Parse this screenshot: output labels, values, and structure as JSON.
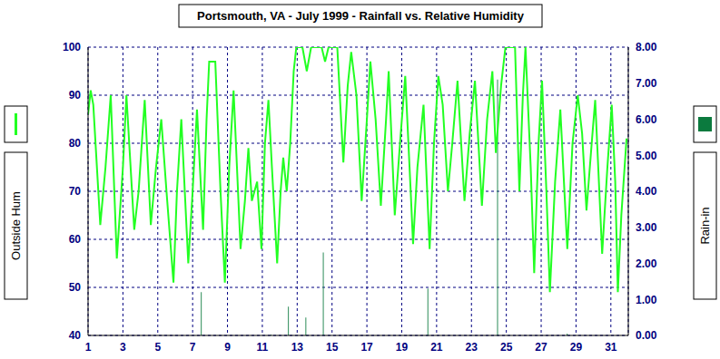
{
  "chart_data": {
    "type": "combo",
    "title": "Portsmouth, VA - July 1999 - Rainfall vs. Relative Humidity",
    "y_label": "Outside Hum",
    "y2_label": "Rain-in",
    "xlim": [
      1,
      32
    ],
    "xticks": [
      1,
      3,
      5,
      7,
      9,
      11,
      13,
      15,
      17,
      19,
      21,
      23,
      25,
      27,
      29,
      31
    ],
    "ylim": [
      40,
      100
    ],
    "yticks": [
      40,
      50,
      60,
      70,
      80,
      90,
      100
    ],
    "y2lim": [
      0,
      8
    ],
    "y2ticks": [
      {
        "value": 0,
        "label": "0.00"
      },
      {
        "value": 1,
        "label": "1.00"
      },
      {
        "value": 2,
        "label": "2.00"
      },
      {
        "value": 3,
        "label": "3.00"
      },
      {
        "value": 4,
        "label": "4.00"
      },
      {
        "value": 5,
        "label": "5.00"
      },
      {
        "value": 6,
        "label": "6.00"
      },
      {
        "value": 7,
        "label": "7.00"
      },
      {
        "value": 8,
        "label": "8.00"
      }
    ],
    "grid": true,
    "series": [
      {
        "name": "Outside Hum",
        "type": "line",
        "color": "#22ff22",
        "x": [
          1.0,
          1.15,
          1.3,
          1.7,
          2.0,
          2.3,
          2.65,
          3.0,
          3.2,
          3.65,
          3.9,
          4.25,
          4.6,
          4.9,
          5.2,
          5.5,
          5.9,
          6.1,
          6.35,
          6.75,
          7.0,
          7.25,
          7.6,
          7.8,
          7.95,
          8.3,
          8.6,
          8.85,
          9.1,
          9.35,
          9.75,
          10.0,
          10.2,
          10.4,
          10.7,
          10.95,
          11.15,
          11.35,
          11.55,
          11.85,
          12.05,
          12.2,
          12.4,
          12.6,
          12.8,
          12.95,
          13.3,
          13.55,
          13.8,
          14.4,
          14.6,
          14.8,
          15.3,
          15.65,
          15.9,
          16.1,
          16.4,
          16.7,
          17.0,
          17.2,
          17.5,
          17.8,
          18.1,
          18.25,
          18.6,
          18.9,
          19.2,
          19.5,
          19.65,
          19.9,
          20.25,
          20.6,
          20.85,
          21.1,
          21.35,
          21.65,
          21.9,
          22.2,
          22.6,
          22.9,
          23.2,
          23.6,
          23.9,
          24.2,
          24.4,
          24.7,
          24.95,
          25.5,
          25.75,
          25.95,
          26.1,
          26.4,
          26.6,
          26.85,
          27.05,
          27.3,
          27.5,
          27.8,
          28.1,
          28.5,
          28.8,
          29.1,
          29.35,
          29.6,
          29.9,
          30.1,
          30.5,
          30.8,
          31.05,
          31.25,
          31.4,
          31.6,
          31.9
        ],
        "values": [
          86,
          91,
          88,
          63,
          75,
          90,
          56,
          75,
          90,
          62,
          70,
          89,
          63,
          75,
          85,
          70,
          51,
          70,
          85,
          55,
          70,
          87,
          62,
          85,
          97,
          97,
          70,
          51,
          75,
          91,
          58,
          68,
          79,
          68,
          72,
          58,
          80,
          89,
          75,
          55,
          70,
          77,
          70,
          80,
          95,
          100,
          100,
          95,
          100,
          100,
          97,
          100,
          100,
          76,
          92,
          99,
          90,
          68,
          85,
          97,
          85,
          67,
          85,
          95,
          65,
          80,
          94,
          71,
          59,
          75,
          88,
          58,
          80,
          94,
          88,
          70,
          80,
          93,
          68,
          82,
          93,
          67,
          85,
          95,
          78,
          92,
          100,
          100,
          70,
          90,
          100,
          75,
          53,
          80,
          93,
          70,
          49,
          72,
          87,
          58,
          80,
          90,
          82,
          66,
          80,
          89,
          57,
          75,
          88,
          72,
          49,
          65,
          81
        ]
      },
      {
        "name": "Rain-in",
        "type": "bar",
        "axis": "y2",
        "color": "#0b7a3e",
        "x": [
          7.5,
          11.5,
          12.5,
          13.5,
          14.5,
          20.5,
          24.5,
          28.5
        ],
        "values": [
          1.2,
          0.02,
          0.8,
          0.5,
          2.3,
          1.3,
          7.1,
          0.05
        ]
      }
    ]
  }
}
